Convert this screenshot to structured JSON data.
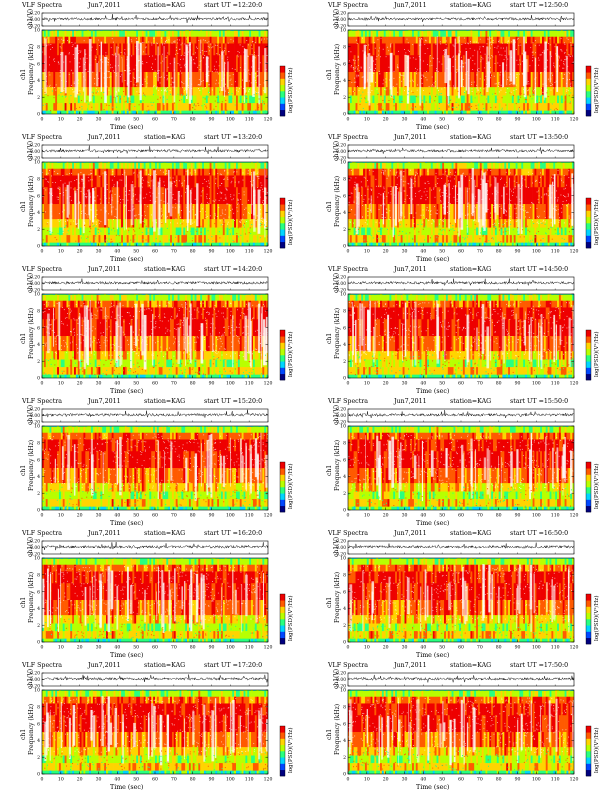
{
  "page": {
    "background": "#ffffff"
  },
  "colors": {
    "colormap": [
      "#00007f",
      "#0047ff",
      "#00d4ff",
      "#28ff80",
      "#b8ff00",
      "#ffd400",
      "#ff5a00",
      "#ee0000"
    ],
    "waveform": "#000000",
    "dense_fill": "#ffffff"
  },
  "colorbar_label": "log(PSD)(V²/Hz)",
  "chart_data": [
    {
      "type": "heatmap",
      "title": "VLF Spectra",
      "date": "Jun7,2011",
      "station": "station=KAG",
      "start": "start UT =12:20:0",
      "xlabel": "Time (sec)",
      "ylabel": "Frequency (kHz)",
      "ylabel_prefix": "ch1",
      "wave_label": "ch1(V)",
      "xlim": [
        0,
        120
      ],
      "ylim": [
        0,
        10
      ],
      "xticks": [
        0,
        10,
        20,
        30,
        40,
        50,
        60,
        70,
        80,
        90,
        100,
        110,
        120
      ],
      "yticks": [
        0,
        2,
        4,
        6,
        8,
        10
      ],
      "wave_yticks": [
        "0.20",
        "0.00",
        "-0.20"
      ]
    },
    {
      "type": "heatmap",
      "title": "VLF Spectra",
      "date": "Jun7,2011",
      "station": "station=KAG",
      "start": "start UT =12:50:0",
      "xlabel": "Time (sec)",
      "ylabel": "Frequency (kHz)",
      "ylabel_prefix": "ch1",
      "wave_label": "ch1(V)",
      "xlim": [
        0,
        120
      ],
      "ylim": [
        0,
        10
      ],
      "xticks": [
        0,
        10,
        20,
        30,
        40,
        50,
        60,
        70,
        80,
        90,
        100,
        110,
        120
      ],
      "yticks": [
        0,
        2,
        4,
        6,
        8,
        10
      ],
      "wave_yticks": [
        "0.20",
        "0.00",
        "-0.20"
      ]
    },
    {
      "type": "heatmap",
      "title": "VLF Spectra",
      "date": "Jun7,2011",
      "station": "station=KAG",
      "start": "start UT =13:20:0",
      "xlabel": "Time (sec)",
      "ylabel": "Frequency (kHz)",
      "ylabel_prefix": "ch1",
      "wave_label": "ch1(V)",
      "xlim": [
        0,
        120
      ],
      "ylim": [
        0,
        10
      ],
      "xticks": [
        0,
        10,
        20,
        30,
        40,
        50,
        60,
        70,
        80,
        90,
        100,
        110,
        120
      ],
      "yticks": [
        0,
        2,
        4,
        6,
        8,
        10
      ],
      "wave_yticks": [
        "0.20",
        "0.00",
        "-0.20"
      ]
    },
    {
      "type": "heatmap",
      "title": "VLF Spectra",
      "date": "Jun7,2011",
      "station": "station=KAG",
      "start": "start UT =13:50:0",
      "xlabel": "Time (sec)",
      "ylabel": "Frequency (kHz)",
      "ylabel_prefix": "ch1",
      "wave_label": "ch1(V)",
      "xlim": [
        0,
        120
      ],
      "ylim": [
        0,
        10
      ],
      "xticks": [
        0,
        10,
        20,
        30,
        40,
        50,
        60,
        70,
        80,
        90,
        100,
        110,
        120
      ],
      "yticks": [
        0,
        2,
        4,
        6,
        8,
        10
      ],
      "wave_yticks": [
        "0.20",
        "0.00",
        "-0.20"
      ]
    },
    {
      "type": "heatmap",
      "title": "VLF Spectra",
      "date": "Jun7,2011",
      "station": "station=KAG",
      "start": "start UT =14:20:0",
      "xlabel": "Time (sec)",
      "ylabel": "Frequency (kHz)",
      "ylabel_prefix": "ch1",
      "wave_label": "ch1(V)",
      "xlim": [
        0,
        120
      ],
      "ylim": [
        0,
        10
      ],
      "xticks": [
        0,
        10,
        20,
        30,
        40,
        50,
        60,
        70,
        80,
        90,
        100,
        110,
        120
      ],
      "yticks": [
        0,
        2,
        4,
        6,
        8,
        10
      ],
      "wave_yticks": [
        "0.20",
        "0.00",
        "-0.20"
      ]
    },
    {
      "type": "heatmap",
      "title": "VLF Spectra",
      "date": "Jun7,2011",
      "station": "station=KAG",
      "start": "start UT =14:50:0",
      "xlabel": "Time (sec)",
      "ylabel": "Frequency (kHz)",
      "ylabel_prefix": "ch1",
      "wave_label": "ch1(V)",
      "xlim": [
        0,
        120
      ],
      "ylim": [
        0,
        10
      ],
      "xticks": [
        0,
        10,
        20,
        30,
        40,
        50,
        60,
        70,
        80,
        90,
        100,
        110,
        120
      ],
      "yticks": [
        0,
        2,
        4,
        6,
        8,
        10
      ],
      "wave_yticks": [
        "0.20",
        "0.00",
        "-0.20"
      ]
    },
    {
      "type": "heatmap",
      "title": "VLF Spectra",
      "date": "Jun7,2011",
      "station": "station=KAG",
      "start": "start UT =15:20:0",
      "xlabel": "Time (sec)",
      "ylabel": "Frequency (kHz)",
      "ylabel_prefix": "ch1",
      "wave_label": "ch1(V)",
      "xlim": [
        0,
        120
      ],
      "ylim": [
        0,
        10
      ],
      "xticks": [
        0,
        10,
        20,
        30,
        40,
        50,
        60,
        70,
        80,
        90,
        100,
        110,
        120
      ],
      "yticks": [
        0,
        2,
        4,
        6,
        8,
        10
      ],
      "wave_yticks": [
        "0.20",
        "0.00",
        "-0.20"
      ]
    },
    {
      "type": "heatmap",
      "title": "VLF Spectra",
      "date": "Jun7,2011",
      "station": "station=KAG",
      "start": "start UT =15:50:0",
      "xlabel": "Time (sec)",
      "ylabel": "Frequency (kHz)",
      "ylabel_prefix": "ch1",
      "wave_label": "ch1(V)",
      "xlim": [
        0,
        120
      ],
      "ylim": [
        0,
        10
      ],
      "xticks": [
        0,
        10,
        20,
        30,
        40,
        50,
        60,
        70,
        80,
        90,
        100,
        110,
        120
      ],
      "yticks": [
        0,
        2,
        4,
        6,
        8,
        10
      ],
      "wave_yticks": [
        "0.20",
        "0.00",
        "-0.20"
      ]
    },
    {
      "type": "heatmap",
      "title": "VLF Spectra",
      "date": "Jun7,2011",
      "station": "station=KAG",
      "start": "start UT =16:20:0",
      "xlabel": "Time (sec)",
      "ylabel": "Frequency (kHz)",
      "ylabel_prefix": "ch1",
      "wave_label": "ch1(V)",
      "xlim": [
        0,
        120
      ],
      "ylim": [
        0,
        10
      ],
      "xticks": [
        0,
        10,
        20,
        30,
        40,
        50,
        60,
        70,
        80,
        90,
        100,
        110,
        120
      ],
      "yticks": [
        0,
        2,
        4,
        6,
        8,
        10
      ],
      "wave_yticks": [
        "0.20",
        "0.00",
        "-0.20"
      ]
    },
    {
      "type": "heatmap",
      "title": "VLF Spectra",
      "date": "Jun7,2011",
      "station": "station=KAG",
      "start": "start UT =16:50:0",
      "xlabel": "Time (sec)",
      "ylabel": "Frequency (kHz)",
      "ylabel_prefix": "ch1",
      "wave_label": "ch1(V)",
      "xlim": [
        0,
        120
      ],
      "ylim": [
        0,
        10
      ],
      "xticks": [
        0,
        10,
        20,
        30,
        40,
        50,
        60,
        70,
        80,
        90,
        100,
        110,
        120
      ],
      "yticks": [
        0,
        2,
        4,
        6,
        8,
        10
      ],
      "wave_yticks": [
        "0.20",
        "0.00",
        "-0.20"
      ]
    },
    {
      "type": "heatmap",
      "title": "VLF Spectra",
      "date": "Jun7,2011",
      "station": "station=KAG",
      "start": "start UT =17:20:0",
      "xlabel": "Time (sec)",
      "ylabel": "Frequency (kHz)",
      "ylabel_prefix": "ch1",
      "wave_label": "ch1(V)",
      "xlim": [
        0,
        120
      ],
      "ylim": [
        0,
        10
      ],
      "xticks": [
        0,
        10,
        20,
        30,
        40,
        50,
        60,
        70,
        80,
        90,
        100,
        110,
        120
      ],
      "yticks": [
        0,
        2,
        4,
        6,
        8,
        10
      ],
      "wave_yticks": [
        "0.20",
        "0.00",
        "-0.20"
      ]
    },
    {
      "type": "heatmap",
      "title": "VLF Spectra",
      "date": "Jun7,2011",
      "station": "station=KAG",
      "start": "start UT =17:50:0",
      "xlabel": "Time (sec)",
      "ylabel": "Frequency (kHz)",
      "ylabel_prefix": "ch1",
      "wave_label": "ch1(V)",
      "xlim": [
        0,
        120
      ],
      "ylim": [
        0,
        10
      ],
      "xticks": [
        0,
        10,
        20,
        30,
        40,
        50,
        60,
        70,
        80,
        90,
        100,
        110,
        120
      ],
      "yticks": [
        0,
        2,
        4,
        6,
        8,
        10
      ],
      "wave_yticks": [
        "0.20",
        "0.00",
        "-0.20"
      ]
    }
  ]
}
